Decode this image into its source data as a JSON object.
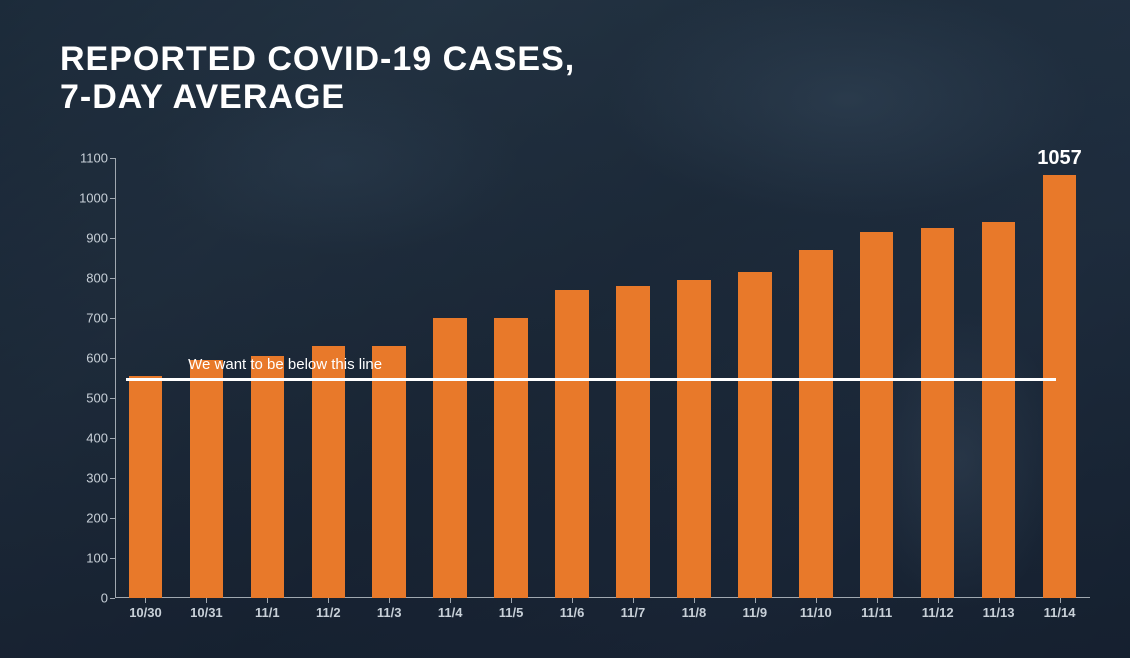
{
  "chart": {
    "type": "bar",
    "title_line1": "REPORTED COVID-19 CASES,",
    "title_line2": "7-DAY AVERAGE",
    "title_fontsize": 34,
    "title_color": "#ffffff",
    "title_weight": 900,
    "background_color": "#1f2d3d",
    "categories": [
      "10/30",
      "10/31",
      "11/1",
      "11/2",
      "11/3",
      "11/4",
      "11/5",
      "11/6",
      "11/7",
      "11/8",
      "11/9",
      "11/10",
      "11/11",
      "11/12",
      "11/13",
      "11/14"
    ],
    "values": [
      555,
      595,
      605,
      630,
      630,
      700,
      700,
      770,
      780,
      795,
      815,
      870,
      915,
      925,
      940,
      1057
    ],
    "bar_color": "#e8792a",
    "bar_width": 0.55,
    "ylim": [
      0,
      1100
    ],
    "ytick_step": 100,
    "y_ticks": [
      0,
      100,
      200,
      300,
      400,
      500,
      600,
      700,
      800,
      900,
      1000,
      1100
    ],
    "axis_color": "#a0a8b0",
    "tick_label_color": "#c8d0d8",
    "tick_label_fontsize": 13,
    "x_tick_fontweight": "bold",
    "reference_line": {
      "value": 550,
      "color": "#ffffff",
      "width": 3,
      "label": "We want to be below this line",
      "label_fontsize": 15
    },
    "last_value_label": {
      "text": "1057",
      "fontsize": 20,
      "color": "#ffffff",
      "fontweight": "bold"
    }
  }
}
